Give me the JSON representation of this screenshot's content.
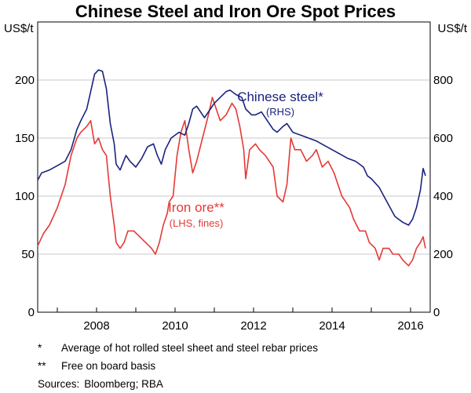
{
  "chart_data": {
    "type": "line",
    "title": "Chinese Steel and Iron Ore Spot Prices",
    "left_axis": {
      "unit": "US$/t",
      "range": [
        0,
        250
      ],
      "ticks": [
        0,
        50,
        100,
        150,
        200
      ]
    },
    "right_axis": {
      "unit": "US$/t",
      "range": [
        0,
        1000
      ],
      "ticks": [
        0,
        200,
        400,
        600,
        800
      ]
    },
    "x_axis": {
      "range": [
        2006.5,
        2016.5
      ],
      "tick_labels": [
        "2008",
        "2010",
        "2012",
        "2014",
        "2016"
      ],
      "tick_years": [
        2008,
        2010,
        2012,
        2014,
        2016
      ]
    },
    "grid": true,
    "series": [
      {
        "name": "Chinese steel*",
        "sub_label": "(RHS)",
        "axis": "right",
        "color": "#1a237e",
        "points": [
          [
            2006.5,
            455
          ],
          [
            2006.6,
            480
          ],
          [
            2006.8,
            490
          ],
          [
            2007.0,
            505
          ],
          [
            2007.2,
            520
          ],
          [
            2007.35,
            560
          ],
          [
            2007.5,
            630
          ],
          [
            2007.6,
            660
          ],
          [
            2007.75,
            700
          ],
          [
            2007.85,
            760
          ],
          [
            2007.95,
            820
          ],
          [
            2008.05,
            835
          ],
          [
            2008.15,
            830
          ],
          [
            2008.25,
            770
          ],
          [
            2008.35,
            650
          ],
          [
            2008.45,
            580
          ],
          [
            2008.5,
            510
          ],
          [
            2008.6,
            490
          ],
          [
            2008.75,
            540
          ],
          [
            2008.85,
            520
          ],
          [
            2009.0,
            500
          ],
          [
            2009.15,
            530
          ],
          [
            2009.3,
            570
          ],
          [
            2009.45,
            580
          ],
          [
            2009.55,
            540
          ],
          [
            2009.65,
            510
          ],
          [
            2009.75,
            560
          ],
          [
            2009.9,
            600
          ],
          [
            2010.1,
            620
          ],
          [
            2010.25,
            610
          ],
          [
            2010.35,
            650
          ],
          [
            2010.45,
            700
          ],
          [
            2010.55,
            710
          ],
          [
            2010.65,
            690
          ],
          [
            2010.75,
            670
          ],
          [
            2010.9,
            700
          ],
          [
            2011.0,
            720
          ],
          [
            2011.15,
            740
          ],
          [
            2011.3,
            760
          ],
          [
            2011.4,
            765
          ],
          [
            2011.55,
            750
          ],
          [
            2011.7,
            740
          ],
          [
            2011.8,
            700
          ],
          [
            2011.95,
            680
          ],
          [
            2012.05,
            680
          ],
          [
            2012.2,
            690
          ],
          [
            2012.35,
            660
          ],
          [
            2012.5,
            630
          ],
          [
            2012.6,
            620
          ],
          [
            2012.75,
            640
          ],
          [
            2012.85,
            650
          ],
          [
            2013.0,
            620
          ],
          [
            2013.2,
            610
          ],
          [
            2013.4,
            600
          ],
          [
            2013.6,
            590
          ],
          [
            2013.8,
            575
          ],
          [
            2014.0,
            560
          ],
          [
            2014.2,
            545
          ],
          [
            2014.4,
            530
          ],
          [
            2014.6,
            520
          ],
          [
            2014.8,
            500
          ],
          [
            2014.9,
            470
          ],
          [
            2015.0,
            460
          ],
          [
            2015.2,
            430
          ],
          [
            2015.4,
            380
          ],
          [
            2015.6,
            330
          ],
          [
            2015.8,
            310
          ],
          [
            2015.95,
            300
          ],
          [
            2016.05,
            320
          ],
          [
            2016.15,
            360
          ],
          [
            2016.25,
            420
          ],
          [
            2016.32,
            495
          ],
          [
            2016.38,
            470
          ]
        ]
      },
      {
        "name": "Iron ore**",
        "sub_label": "(LHS, fines)",
        "axis": "left",
        "color": "#e53935",
        "points": [
          [
            2006.5,
            57
          ],
          [
            2006.65,
            68
          ],
          [
            2006.8,
            75
          ],
          [
            2007.0,
            90
          ],
          [
            2007.2,
            110
          ],
          [
            2007.35,
            135
          ],
          [
            2007.5,
            150
          ],
          [
            2007.6,
            155
          ],
          [
            2007.75,
            160
          ],
          [
            2007.85,
            165
          ],
          [
            2007.95,
            145
          ],
          [
            2008.05,
            150
          ],
          [
            2008.15,
            140
          ],
          [
            2008.25,
            135
          ],
          [
            2008.35,
            100
          ],
          [
            2008.45,
            75
          ],
          [
            2008.5,
            60
          ],
          [
            2008.6,
            55
          ],
          [
            2008.7,
            60
          ],
          [
            2008.8,
            70
          ],
          [
            2008.95,
            70
          ],
          [
            2009.1,
            65
          ],
          [
            2009.25,
            60
          ],
          [
            2009.4,
            55
          ],
          [
            2009.5,
            50
          ],
          [
            2009.6,
            60
          ],
          [
            2009.7,
            75
          ],
          [
            2009.8,
            85
          ],
          [
            2009.85,
            95
          ],
          [
            2009.95,
            100
          ],
          [
            2010.05,
            135
          ],
          [
            2010.15,
            155
          ],
          [
            2010.25,
            165
          ],
          [
            2010.35,
            140
          ],
          [
            2010.45,
            120
          ],
          [
            2010.55,
            130
          ],
          [
            2010.7,
            150
          ],
          [
            2010.85,
            170
          ],
          [
            2010.95,
            185
          ],
          [
            2011.05,
            175
          ],
          [
            2011.15,
            165
          ],
          [
            2011.3,
            170
          ],
          [
            2011.45,
            180
          ],
          [
            2011.55,
            175
          ],
          [
            2011.65,
            160
          ],
          [
            2011.75,
            140
          ],
          [
            2011.8,
            115
          ],
          [
            2011.9,
            140
          ],
          [
            2012.05,
            145
          ],
          [
            2012.15,
            140
          ],
          [
            2012.3,
            135
          ],
          [
            2012.5,
            125
          ],
          [
            2012.6,
            100
          ],
          [
            2012.75,
            95
          ],
          [
            2012.85,
            110
          ],
          [
            2012.95,
            150
          ],
          [
            2013.05,
            140
          ],
          [
            2013.2,
            140
          ],
          [
            2013.35,
            130
          ],
          [
            2013.5,
            135
          ],
          [
            2013.6,
            140
          ],
          [
            2013.75,
            125
          ],
          [
            2013.9,
            130
          ],
          [
            2014.05,
            120
          ],
          [
            2014.25,
            100
          ],
          [
            2014.45,
            90
          ],
          [
            2014.55,
            80
          ],
          [
            2014.7,
            70
          ],
          [
            2014.85,
            70
          ],
          [
            2014.95,
            60
          ],
          [
            2015.1,
            55
          ],
          [
            2015.2,
            45
          ],
          [
            2015.3,
            55
          ],
          [
            2015.45,
            55
          ],
          [
            2015.55,
            50
          ],
          [
            2015.7,
            50
          ],
          [
            2015.8,
            45
          ],
          [
            2015.95,
            40
          ],
          [
            2016.05,
            45
          ],
          [
            2016.15,
            55
          ],
          [
            2016.25,
            60
          ],
          [
            2016.32,
            65
          ],
          [
            2016.38,
            55
          ]
        ]
      }
    ],
    "labels": {
      "steel_name": "Chinese steel*",
      "steel_sub": "(RHS)",
      "ore_name": "Iron ore**",
      "ore_sub": "(LHS, fines)"
    }
  },
  "footnotes": [
    {
      "symbol": "*",
      "text": "Average of hot rolled steel sheet and steel rebar prices"
    },
    {
      "symbol": "**",
      "text": "Free on board basis"
    }
  ],
  "sources": {
    "label": "Sources:",
    "text": "Bloomberg; RBA"
  }
}
